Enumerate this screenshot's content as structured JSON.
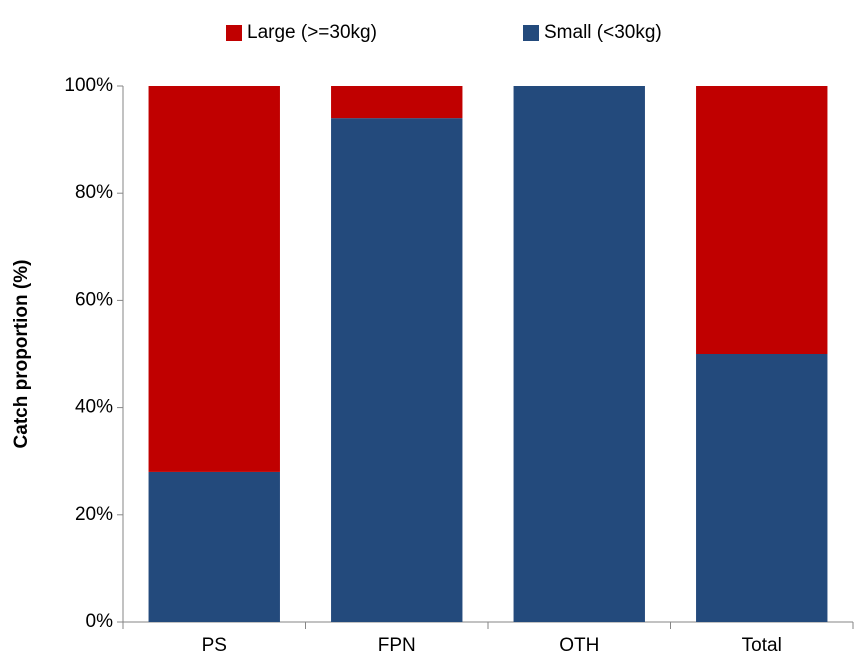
{
  "chart_data": {
    "type": "stacked_bar",
    "y_label": "Catch proportion (%)",
    "categories": [
      "PS",
      "FPN",
      "OTH",
      "Total"
    ],
    "series": [
      {
        "name": "Large (>=30kg)",
        "color": "#c00000",
        "values": [
          72,
          6,
          0,
          50
        ]
      },
      {
        "name": "Small (<30kg)",
        "color": "#234a7c",
        "values": [
          28,
          94,
          100,
          50
        ]
      }
    ],
    "ylim": [
      0,
      100
    ],
    "yticks": [
      {
        "value": 0,
        "label": "0%"
      },
      {
        "value": 20,
        "label": "20%"
      },
      {
        "value": 40,
        "label": "40%"
      },
      {
        "value": 60,
        "label": "60%"
      },
      {
        "value": 80,
        "label": "80%"
      },
      {
        "value": 100,
        "label": "100%"
      }
    ],
    "grid": false,
    "legend": "top"
  }
}
